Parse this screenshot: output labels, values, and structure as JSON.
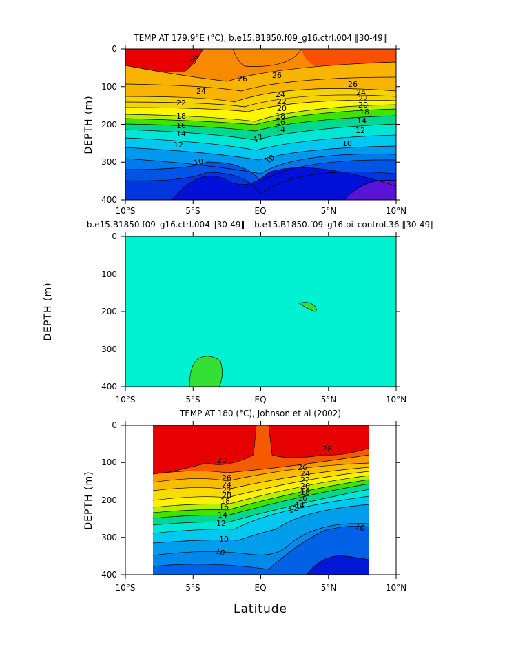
{
  "chart_data": [
    {
      "type": "contour",
      "title": "TEMP AT 179.9°E (°C), b.e15.B1850.f09_g16.ctrl.004 ‖30-49‖",
      "ylabel": "DEPTH (m)",
      "xlabel": "",
      "xlim": [
        -10,
        10
      ],
      "ylim": [
        400,
        0
      ],
      "x_ticks": [
        "10°S",
        "5°S",
        "EQ",
        "5°N",
        "10°N"
      ],
      "y_ticks": [
        "0",
        "100",
        "200",
        "300",
        "400"
      ],
      "contour_labels": [
        "26",
        "26",
        "26",
        "26",
        "24",
        "24",
        "24",
        "22",
        "22",
        "22",
        "20",
        "20",
        "18",
        "18",
        "18",
        "16",
        "16",
        "14",
        "14",
        "14",
        "12",
        "12",
        "12",
        "10",
        "10",
        "10"
      ]
    },
    {
      "type": "contour",
      "title": "b.e15.B1850.f09_g16.ctrl.004 ‖30-49‖ – b.e15.B1850.f09_g16.pi_control.36 ‖30-49‖",
      "ylabel": "DEPTH (m)",
      "xlabel": "",
      "xlim": [
        -10,
        10
      ],
      "ylim": [
        400,
        0
      ],
      "x_ticks": [
        "10°S",
        "5°S",
        "EQ",
        "5°N",
        "10°N"
      ],
      "y_ticks": [
        "0",
        "100",
        "200",
        "300",
        "400"
      ]
    },
    {
      "type": "contour",
      "title": "TEMP AT 180 (°C), Johnson et al (2002)",
      "ylabel": "DEPTH (m)",
      "xlabel": "Latitude",
      "xlim": [
        -10,
        10
      ],
      "ylim": [
        400,
        0
      ],
      "x_ticks": [
        "10°S",
        "5°S",
        "EQ",
        "5°N",
        "10°N"
      ],
      "y_ticks": [
        "0",
        "100",
        "200",
        "300",
        "400"
      ],
      "contour_labels": [
        "28",
        "28",
        "26",
        "26",
        "24",
        "24",
        "22",
        "22",
        "20",
        "20",
        "18",
        "18",
        "16",
        "16",
        "14",
        "14",
        "12",
        "12",
        "10",
        "10",
        "10"
      ]
    }
  ]
}
